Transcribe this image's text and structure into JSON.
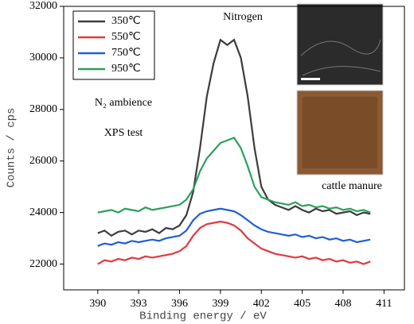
{
  "chart_data": {
    "type": "line",
    "x_label": "Binding energy / eV",
    "y_label": "Counts / cps",
    "annotations": [
      "Nitrogen",
      "N₂ ambience",
      "XPS test",
      "cattle manure"
    ],
    "x": [
      390,
      390.5,
      391,
      391.5,
      392,
      392.5,
      393,
      393.5,
      394,
      394.5,
      395,
      395.5,
      396,
      396.5,
      397,
      397.5,
      398,
      398.5,
      399,
      399.5,
      400,
      400.5,
      401,
      401.5,
      402,
      402.5,
      403,
      403.5,
      404,
      404.5,
      405,
      405.5,
      406,
      406.5,
      407,
      407.5,
      408,
      408.5,
      409,
      409.5,
      410
    ],
    "series": [
      {
        "name": "350℃",
        "color": "#3c3c3c",
        "values": [
          23200,
          23300,
          23100,
          23250,
          23300,
          23150,
          23300,
          23250,
          23350,
          23200,
          23400,
          23350,
          23500,
          23900,
          24800,
          26500,
          28500,
          29800,
          30700,
          30500,
          30700,
          30000,
          28500,
          26500,
          25000,
          24500,
          24300,
          24200,
          24100,
          24250,
          24100,
          24000,
          24150,
          24050,
          24100,
          23950,
          24000,
          24050,
          23900,
          24000,
          23950
        ]
      },
      {
        "name": "550℃",
        "color": "#e03a3e",
        "values": [
          22000,
          22150,
          22100,
          22200,
          22150,
          22250,
          22200,
          22300,
          22250,
          22300,
          22350,
          22400,
          22500,
          22700,
          23100,
          23400,
          23550,
          23600,
          23650,
          23600,
          23500,
          23300,
          23000,
          22800,
          22600,
          22500,
          22400,
          22350,
          22300,
          22250,
          22300,
          22200,
          22250,
          22150,
          22200,
          22100,
          22150,
          22050,
          22100,
          22000,
          22100
        ]
      },
      {
        "name": "750℃",
        "color": "#1f5fd6",
        "values": [
          22700,
          22800,
          22750,
          22850,
          22800,
          22900,
          22850,
          22900,
          22950,
          22900,
          23000,
          23050,
          23100,
          23300,
          23700,
          23950,
          24050,
          24100,
          24150,
          24100,
          24050,
          23900,
          23700,
          23500,
          23350,
          23250,
          23200,
          23150,
          23100,
          23150,
          23050,
          23100,
          23000,
          23050,
          22950,
          23000,
          22900,
          22950,
          22850,
          22900,
          22950
        ]
      },
      {
        "name": "950℃",
        "color": "#2ca05a",
        "values": [
          24000,
          24050,
          24100,
          24000,
          24150,
          24100,
          24050,
          24200,
          24100,
          24150,
          24200,
          24250,
          24300,
          24500,
          24900,
          25600,
          26100,
          26400,
          26700,
          26800,
          26900,
          26500,
          25800,
          25000,
          24600,
          24500,
          24400,
          24350,
          24300,
          24400,
          24250,
          24300,
          24200,
          24250,
          24150,
          24200,
          24100,
          24150,
          24050,
          24100,
          24000
        ]
      }
    ],
    "xlim": [
      387.5,
      412.5
    ],
    "xticks": [
      390,
      393,
      396,
      399,
      402,
      405,
      408,
      411
    ],
    "ylim": [
      21000,
      32000
    ],
    "yticks": [
      22000,
      24000,
      26000,
      28000,
      30000,
      32000
    ]
  }
}
